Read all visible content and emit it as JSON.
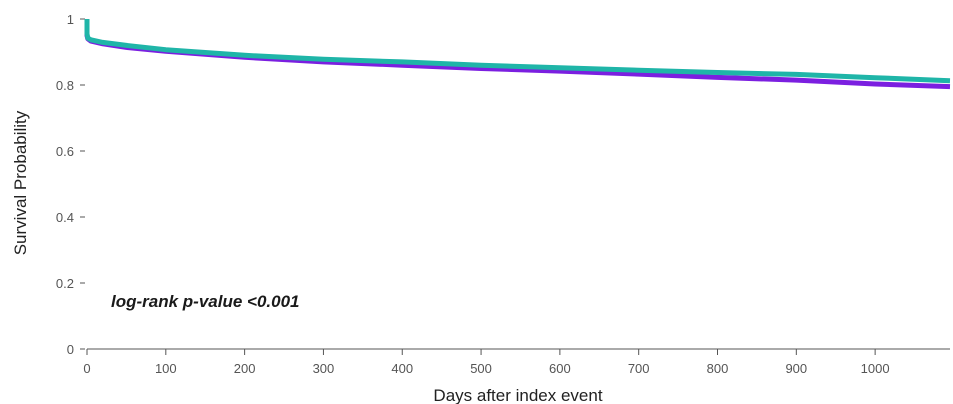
{
  "chart_data": {
    "type": "line",
    "title": "",
    "xlabel": "Days after index event",
    "ylabel": "Survival Probability",
    "xlim": [
      0,
      1095
    ],
    "ylim": [
      0,
      1
    ],
    "xticks": [
      0,
      100,
      200,
      300,
      400,
      500,
      600,
      700,
      800,
      900,
      1000
    ],
    "xtick_labels": [
      "0",
      "100",
      "200",
      "300",
      "400",
      "500",
      "600",
      "700",
      "800",
      "900",
      "1000"
    ],
    "yticks": [
      0,
      0.2,
      0.4,
      0.6,
      0.8,
      1
    ],
    "ytick_labels": [
      "0",
      "0.2",
      "0.4",
      "0.6",
      "0.8",
      "1"
    ],
    "grid": false,
    "legend": "none",
    "annotation": "log-rank p-value <0.001",
    "series": [
      {
        "color": "#1fb5a8",
        "x": [
          0,
          0,
          1,
          5,
          20,
          50,
          100,
          200,
          300,
          400,
          500,
          600,
          700,
          800,
          900,
          1000,
          1095
        ],
        "y": [
          1.0,
          0.955,
          0.942,
          0.937,
          0.929,
          0.92,
          0.907,
          0.89,
          0.878,
          0.87,
          0.86,
          0.852,
          0.845,
          0.838,
          0.832,
          0.822,
          0.813
        ]
      },
      {
        "color": "#7b1fe0",
        "x": [
          0,
          0,
          1,
          5,
          20,
          50,
          100,
          200,
          300,
          400,
          500,
          600,
          700,
          800,
          900,
          1000,
          1095
        ],
        "y": [
          1.0,
          0.95,
          0.94,
          0.933,
          0.925,
          0.914,
          0.902,
          0.884,
          0.87,
          0.86,
          0.85,
          0.842,
          0.833,
          0.823,
          0.815,
          0.803,
          0.795
        ]
      }
    ]
  }
}
